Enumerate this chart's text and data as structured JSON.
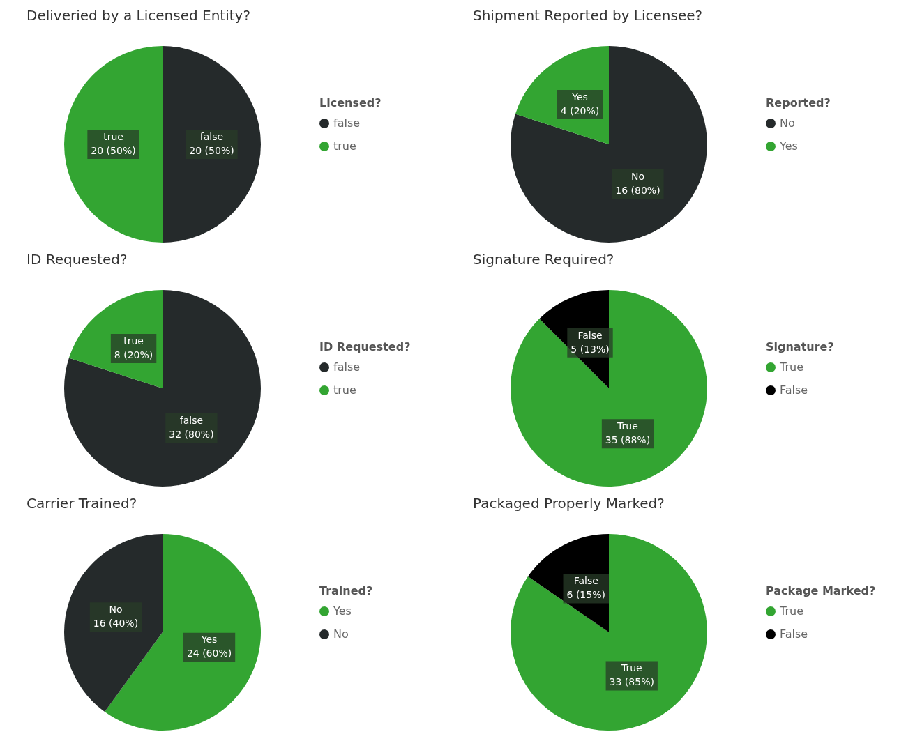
{
  "chart_data": [
    {
      "type": "pie",
      "title": "Deliveried by a Licensed Entity?",
      "legend_title": "Licensed?",
      "legend": "right",
      "categories": [
        "false",
        "true"
      ],
      "values": [
        20,
        20
      ],
      "colors": [
        "#252a2b",
        "#33a532"
      ],
      "value_labels": [
        "20 (50%)",
        "20 (50%)"
      ]
    },
    {
      "type": "pie",
      "title": "Shipment Reported by Licensee?",
      "legend_title": "Reported?",
      "legend": "right",
      "categories": [
        "No",
        "Yes"
      ],
      "values": [
        16,
        4
      ],
      "colors": [
        "#252a2b",
        "#33a532"
      ],
      "value_labels": [
        "16 (80%)",
        "4 (20%)"
      ]
    },
    {
      "type": "pie",
      "title": "ID Requested?",
      "legend_title": "ID Requested?",
      "legend": "right",
      "categories": [
        "false",
        "true"
      ],
      "values": [
        32,
        8
      ],
      "colors": [
        "#252a2b",
        "#33a532"
      ],
      "value_labels": [
        "32 (80%)",
        "8 (20%)"
      ]
    },
    {
      "type": "pie",
      "title": "Signature Required?",
      "legend_title": "Signature?",
      "legend": "right",
      "categories": [
        "True",
        "False"
      ],
      "values": [
        35,
        5
      ],
      "colors": [
        "#33a532",
        "#000000"
      ],
      "value_labels": [
        "35 (88%)",
        "5 (13%)"
      ]
    },
    {
      "type": "pie",
      "title": "Carrier Trained?",
      "legend_title": "Trained?",
      "legend": "right",
      "categories": [
        "Yes",
        "No"
      ],
      "values": [
        24,
        16
      ],
      "colors": [
        "#33a532",
        "#252a2b"
      ],
      "value_labels": [
        "24 (60%)",
        "16 (40%)"
      ]
    },
    {
      "type": "pie",
      "title": "Packaged Properly Marked?",
      "legend_title": "Package Marked?",
      "legend": "right",
      "categories": [
        "True",
        "False"
      ],
      "values": [
        33,
        6
      ],
      "colors": [
        "#33a532",
        "#000000"
      ],
      "value_labels": [
        "33 (85%)",
        "6 (15%)"
      ]
    }
  ]
}
